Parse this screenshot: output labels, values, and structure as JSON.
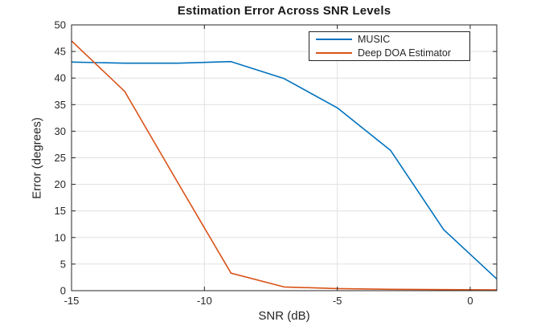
{
  "chart_data": {
    "type": "line",
    "title": "Estimation Error Across SNR Levels",
    "xlabel": "SNR (dB)",
    "ylabel": "Error (degrees)",
    "xlim": [
      -15,
      1
    ],
    "ylim": [
      0,
      50
    ],
    "xticks": [
      -15,
      -10,
      -5,
      0
    ],
    "yticks": [
      0,
      5,
      10,
      15,
      20,
      25,
      30,
      35,
      40,
      45,
      50
    ],
    "grid": true,
    "legend_position": "top-right-inside",
    "x": [
      -15,
      -13,
      -11,
      -9,
      -7,
      -5,
      -3,
      -1,
      1
    ],
    "series": [
      {
        "name": "MUSIC",
        "color": "#0072BD",
        "values": [
          43.0,
          42.8,
          42.8,
          43.1,
          39.9,
          34.4,
          26.4,
          11.5,
          2.2
        ]
      },
      {
        "name": "Deep DOA Estimator",
        "color": "#D95319",
        "values": [
          47.0,
          37.5,
          20.3,
          3.3,
          0.7,
          0.4,
          0.25,
          0.2,
          0.15
        ]
      }
    ],
    "colors": {
      "axis": "#262626",
      "grid": "#e0e0e0",
      "tick_label": "#262626",
      "background": "#ffffff"
    }
  }
}
